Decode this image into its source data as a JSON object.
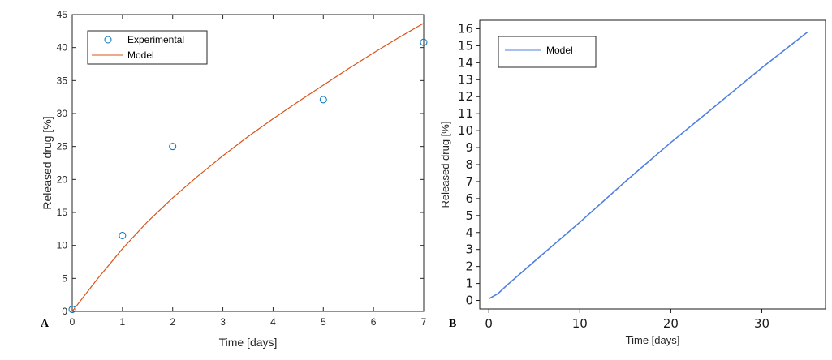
{
  "chart_data": [
    {
      "type": "scatter",
      "panel_label": "A",
      "xlabel": "Time [days]",
      "ylabel": "Released drug [%]",
      "xlim": [
        0,
        7
      ],
      "ylim": [
        0,
        45
      ],
      "xticks": [
        0,
        1,
        2,
        3,
        4,
        5,
        6,
        7
      ],
      "yticks": [
        0,
        5,
        10,
        15,
        20,
        25,
        30,
        35,
        40,
        45
      ],
      "grid": false,
      "legend_position": "top-left",
      "series": [
        {
          "name": "Experimental",
          "kind": "scatter",
          "color": "#0072BD",
          "x": [
            0,
            1,
            2,
            5,
            7
          ],
          "y": [
            0.3,
            11.5,
            25.0,
            32.1,
            40.8
          ]
        },
        {
          "name": "Model",
          "kind": "line",
          "color": "#D95319",
          "x": [
            0,
            0.5,
            1,
            1.5,
            2,
            2.5,
            3,
            3.5,
            4,
            4.5,
            5,
            5.5,
            6,
            6.5,
            7
          ],
          "y": [
            0,
            4.9,
            9.5,
            13.6,
            17.2,
            20.5,
            23.6,
            26.5,
            29.2,
            31.8,
            34.3,
            36.8,
            39.2,
            41.5,
            43.7
          ]
        }
      ]
    },
    {
      "type": "line",
      "panel_label": "B",
      "xlabel": "Time [days]",
      "ylabel": "Released drug [%]",
      "xlim": [
        -1,
        37
      ],
      "ylim": [
        -0.5,
        16.5
      ],
      "xticks": [
        0,
        10,
        20,
        30
      ],
      "yticks": [
        0,
        1,
        2,
        3,
        4,
        5,
        6,
        7,
        8,
        9,
        10,
        11,
        12,
        13,
        14,
        15,
        16
      ],
      "grid": false,
      "legend_position": "top-left",
      "series": [
        {
          "name": "Model",
          "kind": "line",
          "color": "#4F7FE0",
          "x": [
            0,
            1,
            2,
            5,
            10,
            15,
            20,
            25,
            30,
            35
          ],
          "y": [
            0.1,
            0.4,
            0.9,
            2.3,
            4.6,
            7.0,
            9.3,
            11.5,
            13.7,
            15.8
          ]
        }
      ]
    }
  ]
}
